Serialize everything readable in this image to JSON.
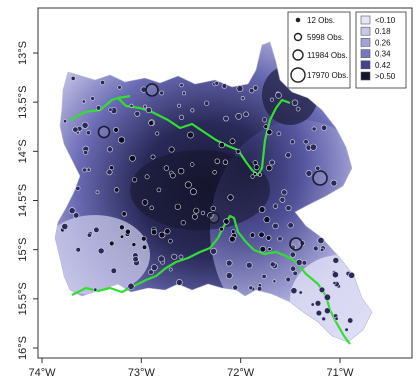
{
  "map": {
    "x_axis": {
      "ticks": [
        {
          "lon": -74,
          "label": "74°W"
        },
        {
          "lon": -73,
          "label": "73°W"
        },
        {
          "lon": -72,
          "label": "72°W"
        },
        {
          "lon": -71,
          "label": "71°W"
        }
      ]
    },
    "y_axis": {
      "ticks": [
        {
          "lat": -13.0,
          "label": "13°S"
        },
        {
          "lat": -13.5,
          "label": "13.5°S"
        },
        {
          "lat": -14.0,
          "label": "14°S"
        },
        {
          "lat": -14.5,
          "label": "14.5°S"
        },
        {
          "lat": -15.0,
          "label": "15°S"
        },
        {
          "lat": -15.5,
          "label": "15.5°S"
        },
        {
          "lat": -16.0,
          "label": "16°S"
        }
      ]
    },
    "size_legend": {
      "entries": [
        {
          "label": "12 Obs."
        },
        {
          "label": "5998 Obs."
        },
        {
          "label": "11984 Obs."
        },
        {
          "label": "17970 Obs."
        }
      ]
    },
    "color_legend": {
      "entries": [
        {
          "label": "<0.10",
          "color": "#e6e6f7"
        },
        {
          "label": "0.18",
          "color": "#c8c8ec"
        },
        {
          "label": "0.26",
          "color": "#a3a3dc"
        },
        {
          "label": "0.34",
          "color": "#7777c0"
        },
        {
          "label": "0.42",
          "color": "#44448e"
        },
        {
          "label": ">0.50",
          "color": "#15152e"
        }
      ]
    },
    "colors": {
      "boundary_line": "#33dd33",
      "low": "#e6e6f7",
      "high": "#15152e"
    }
  }
}
